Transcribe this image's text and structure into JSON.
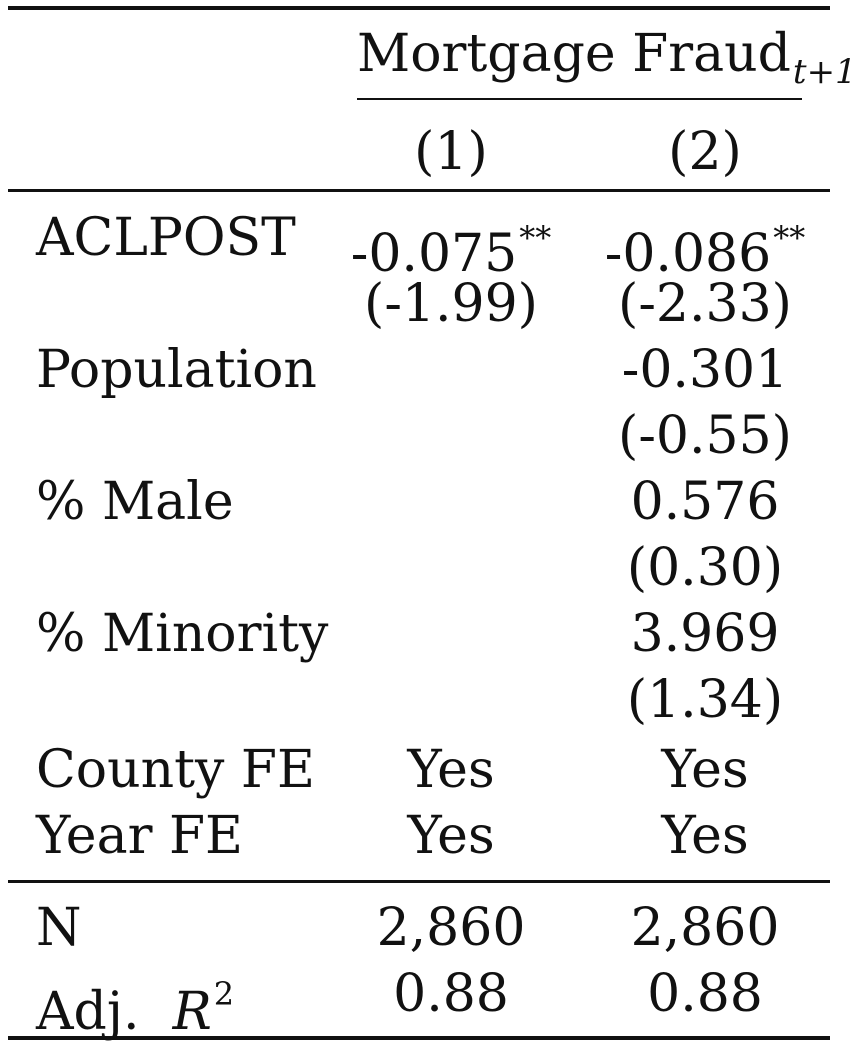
{
  "header": {
    "group_title": "Mortgage Fraud",
    "group_subscript": "t+1",
    "columns": [
      "(1)",
      "(2)"
    ]
  },
  "rows": [
    {
      "label": "ACLPOST",
      "c1": "-0.075",
      "c1_sig": "**",
      "c2": "-0.086",
      "c2_sig": "**"
    },
    {
      "label": "",
      "c1": "(-1.99)",
      "c2": "(-2.33)"
    },
    {
      "label": "Population",
      "c1": "",
      "c2": "-0.301"
    },
    {
      "label": "",
      "c1": "",
      "c2": "(-0.55)"
    },
    {
      "label": "% Male",
      "c1": "",
      "c2": "0.576"
    },
    {
      "label": "",
      "c1": "",
      "c2": "(0.30)"
    },
    {
      "label": "% Minority",
      "c1": "",
      "c2": "3.969"
    },
    {
      "label": "",
      "c1": "",
      "c2": "(1.34)"
    },
    {
      "label": "County FE",
      "c1": "Yes",
      "c2": "Yes"
    },
    {
      "label": "Year FE",
      "c1": "Yes",
      "c2": "Yes"
    }
  ],
  "stats": [
    {
      "label": "N",
      "c1": "2,860",
      "c2": "2,860"
    },
    {
      "label_prefix": "Adj.",
      "label_var": "R",
      "label_sup": "2",
      "c1": "0.88",
      "c2": "0.88"
    }
  ]
}
